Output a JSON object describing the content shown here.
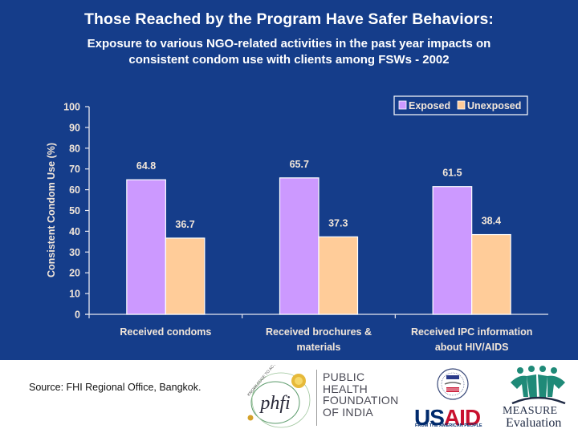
{
  "title": "Those Reached by the Program Have Safer Behaviors:",
  "subtitle_lines": [
    "Exposure to various NGO-related activities in the past year impacts on",
    "consistent condom use with clients among FSWs - 2002"
  ],
  "colors": {
    "background": "#153d8a",
    "exposed": "#cc99ff",
    "unexposed": "#ffcc99",
    "axis": "#e8e8f0",
    "text": "#f2e6d9"
  },
  "chart_data": {
    "type": "bar",
    "title": "Those Reached by the Program Have Safer Behaviors:",
    "subtitle": "Exposure to various NGO-related activities in the past year impacts on consistent condom use with clients among FSWs - 2002",
    "xlabel": "",
    "ylabel": "Consistent Condom Use (%)",
    "ylim": [
      0,
      100
    ],
    "yticks": [
      0,
      10,
      20,
      30,
      40,
      50,
      60,
      70,
      80,
      90,
      100
    ],
    "grid": false,
    "legend_position": "top-right",
    "categories": [
      [
        "Received condoms"
      ],
      [
        "Received brochures &",
        "materials"
      ],
      [
        "Received IPC information",
        "about HIV/AIDS"
      ]
    ],
    "series": [
      {
        "name": "Exposed",
        "values": [
          64.8,
          65.7,
          61.5
        ]
      },
      {
        "name": "Unexposed",
        "values": [
          36.7,
          37.3,
          38.4
        ]
      }
    ],
    "data_labels": true
  },
  "footer": {
    "source": "Source: FHI Regional Office, Bangkok.",
    "logos": {
      "phfi": {
        "mark": "phfi",
        "arc_text": "KNOWLEDGE TO ACTION",
        "lines": [
          "PUBLIC",
          "HEALTH",
          "FOUNDATION",
          "OF INDIA"
        ]
      },
      "usaid": {
        "word_a": "US",
        "word_b": "AID",
        "tagline": "FROM THE AMERICAN PEOPLE"
      },
      "measure": {
        "word": "MEASURE",
        "sub": "Evaluation"
      }
    }
  }
}
